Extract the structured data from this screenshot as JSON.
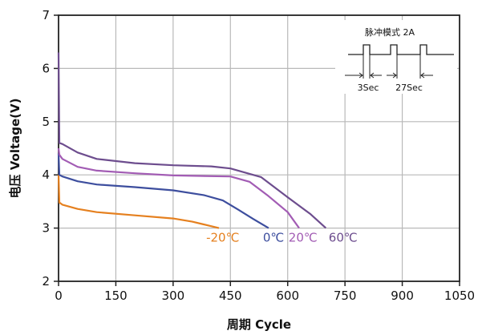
{
  "chart_data": {
    "type": "line",
    "xlabel": "周期 Cycle",
    "ylabel": "电压 Voltage(V)",
    "xlim": [
      0,
      1050
    ],
    "ylim": [
      2,
      7
    ],
    "x_ticks": [
      0,
      150,
      300,
      450,
      600,
      750,
      900,
      1050
    ],
    "y_ticks": [
      2,
      3,
      4,
      5,
      6,
      7
    ],
    "grid": true,
    "series": [
      {
        "name": "-20℃",
        "color": "#E5801F",
        "points": [
          [
            0,
            4.0
          ],
          [
            2,
            3.48
          ],
          [
            10,
            3.44
          ],
          [
            50,
            3.36
          ],
          [
            100,
            3.3
          ],
          [
            200,
            3.24
          ],
          [
            300,
            3.18
          ],
          [
            350,
            3.12
          ],
          [
            380,
            3.07
          ],
          [
            420,
            3.0
          ]
        ]
      },
      {
        "name": "0℃",
        "color": "#3D4E9E",
        "points": [
          [
            0,
            4.4
          ],
          [
            2,
            4.0
          ],
          [
            10,
            3.97
          ],
          [
            50,
            3.88
          ],
          [
            100,
            3.82
          ],
          [
            200,
            3.77
          ],
          [
            300,
            3.71
          ],
          [
            380,
            3.62
          ],
          [
            430,
            3.52
          ],
          [
            470,
            3.35
          ],
          [
            510,
            3.17
          ],
          [
            550,
            3.0
          ]
        ]
      },
      {
        "name": "20℃",
        "color": "#A25CB4",
        "points": [
          [
            0,
            4.5
          ],
          [
            2,
            4.38
          ],
          [
            10,
            4.3
          ],
          [
            50,
            4.15
          ],
          [
            100,
            4.08
          ],
          [
            200,
            4.03
          ],
          [
            300,
            3.99
          ],
          [
            450,
            3.97
          ],
          [
            500,
            3.87
          ],
          [
            550,
            3.6
          ],
          [
            600,
            3.3
          ],
          [
            630,
            3.0
          ]
        ]
      },
      {
        "name": "60℃",
        "color": "#6D4D8E",
        "points": [
          [
            0,
            6.3
          ],
          [
            2,
            4.6
          ],
          [
            10,
            4.58
          ],
          [
            50,
            4.42
          ],
          [
            100,
            4.3
          ],
          [
            200,
            4.22
          ],
          [
            300,
            4.18
          ],
          [
            400,
            4.16
          ],
          [
            450,
            4.12
          ],
          [
            530,
            3.96
          ],
          [
            600,
            3.58
          ],
          [
            660,
            3.26
          ],
          [
            700,
            3.0
          ]
        ]
      }
    ],
    "series_labels": [
      {
        "text": "-20℃",
        "color": "#E5801F",
        "x": 430,
        "y": 2.82
      },
      {
        "text": "0℃",
        "color": "#3D4E9E",
        "x": 563,
        "y": 2.82
      },
      {
        "text": "20℃",
        "color": "#A25CB4",
        "x": 640,
        "y": 2.82
      },
      {
        "text": "60℃",
        "color": "#6D4D8E",
        "x": 745,
        "y": 2.82
      }
    ],
    "inset": {
      "title": "脉冲模式 2A",
      "label_pulse": "3Sec",
      "label_rest": "27Sec"
    }
  }
}
